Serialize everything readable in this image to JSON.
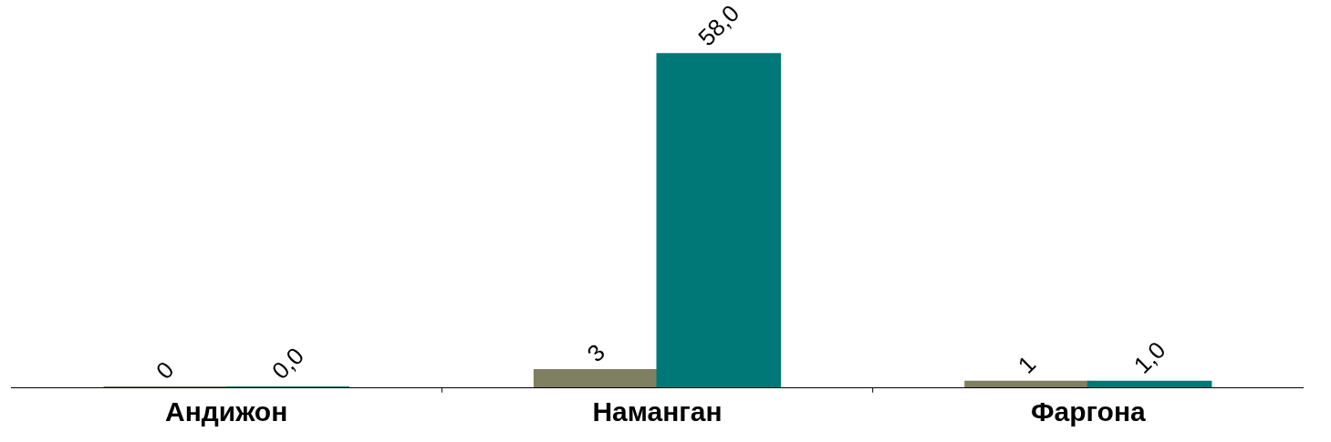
{
  "chart_data": {
    "type": "bar",
    "categories": [
      "Андижон",
      "Наманган",
      "Фаргона"
    ],
    "series": [
      {
        "color": "#7f7f62",
        "values": [
          0,
          3,
          1
        ],
        "value_labels": [
          "0",
          "3",
          "1"
        ]
      },
      {
        "color": "#007878",
        "values": [
          0.0,
          58.0,
          1.0
        ],
        "value_labels": [
          "0,0",
          "58,0",
          "1,0"
        ]
      }
    ],
    "grid": false,
    "tick_labels": "x"
  }
}
